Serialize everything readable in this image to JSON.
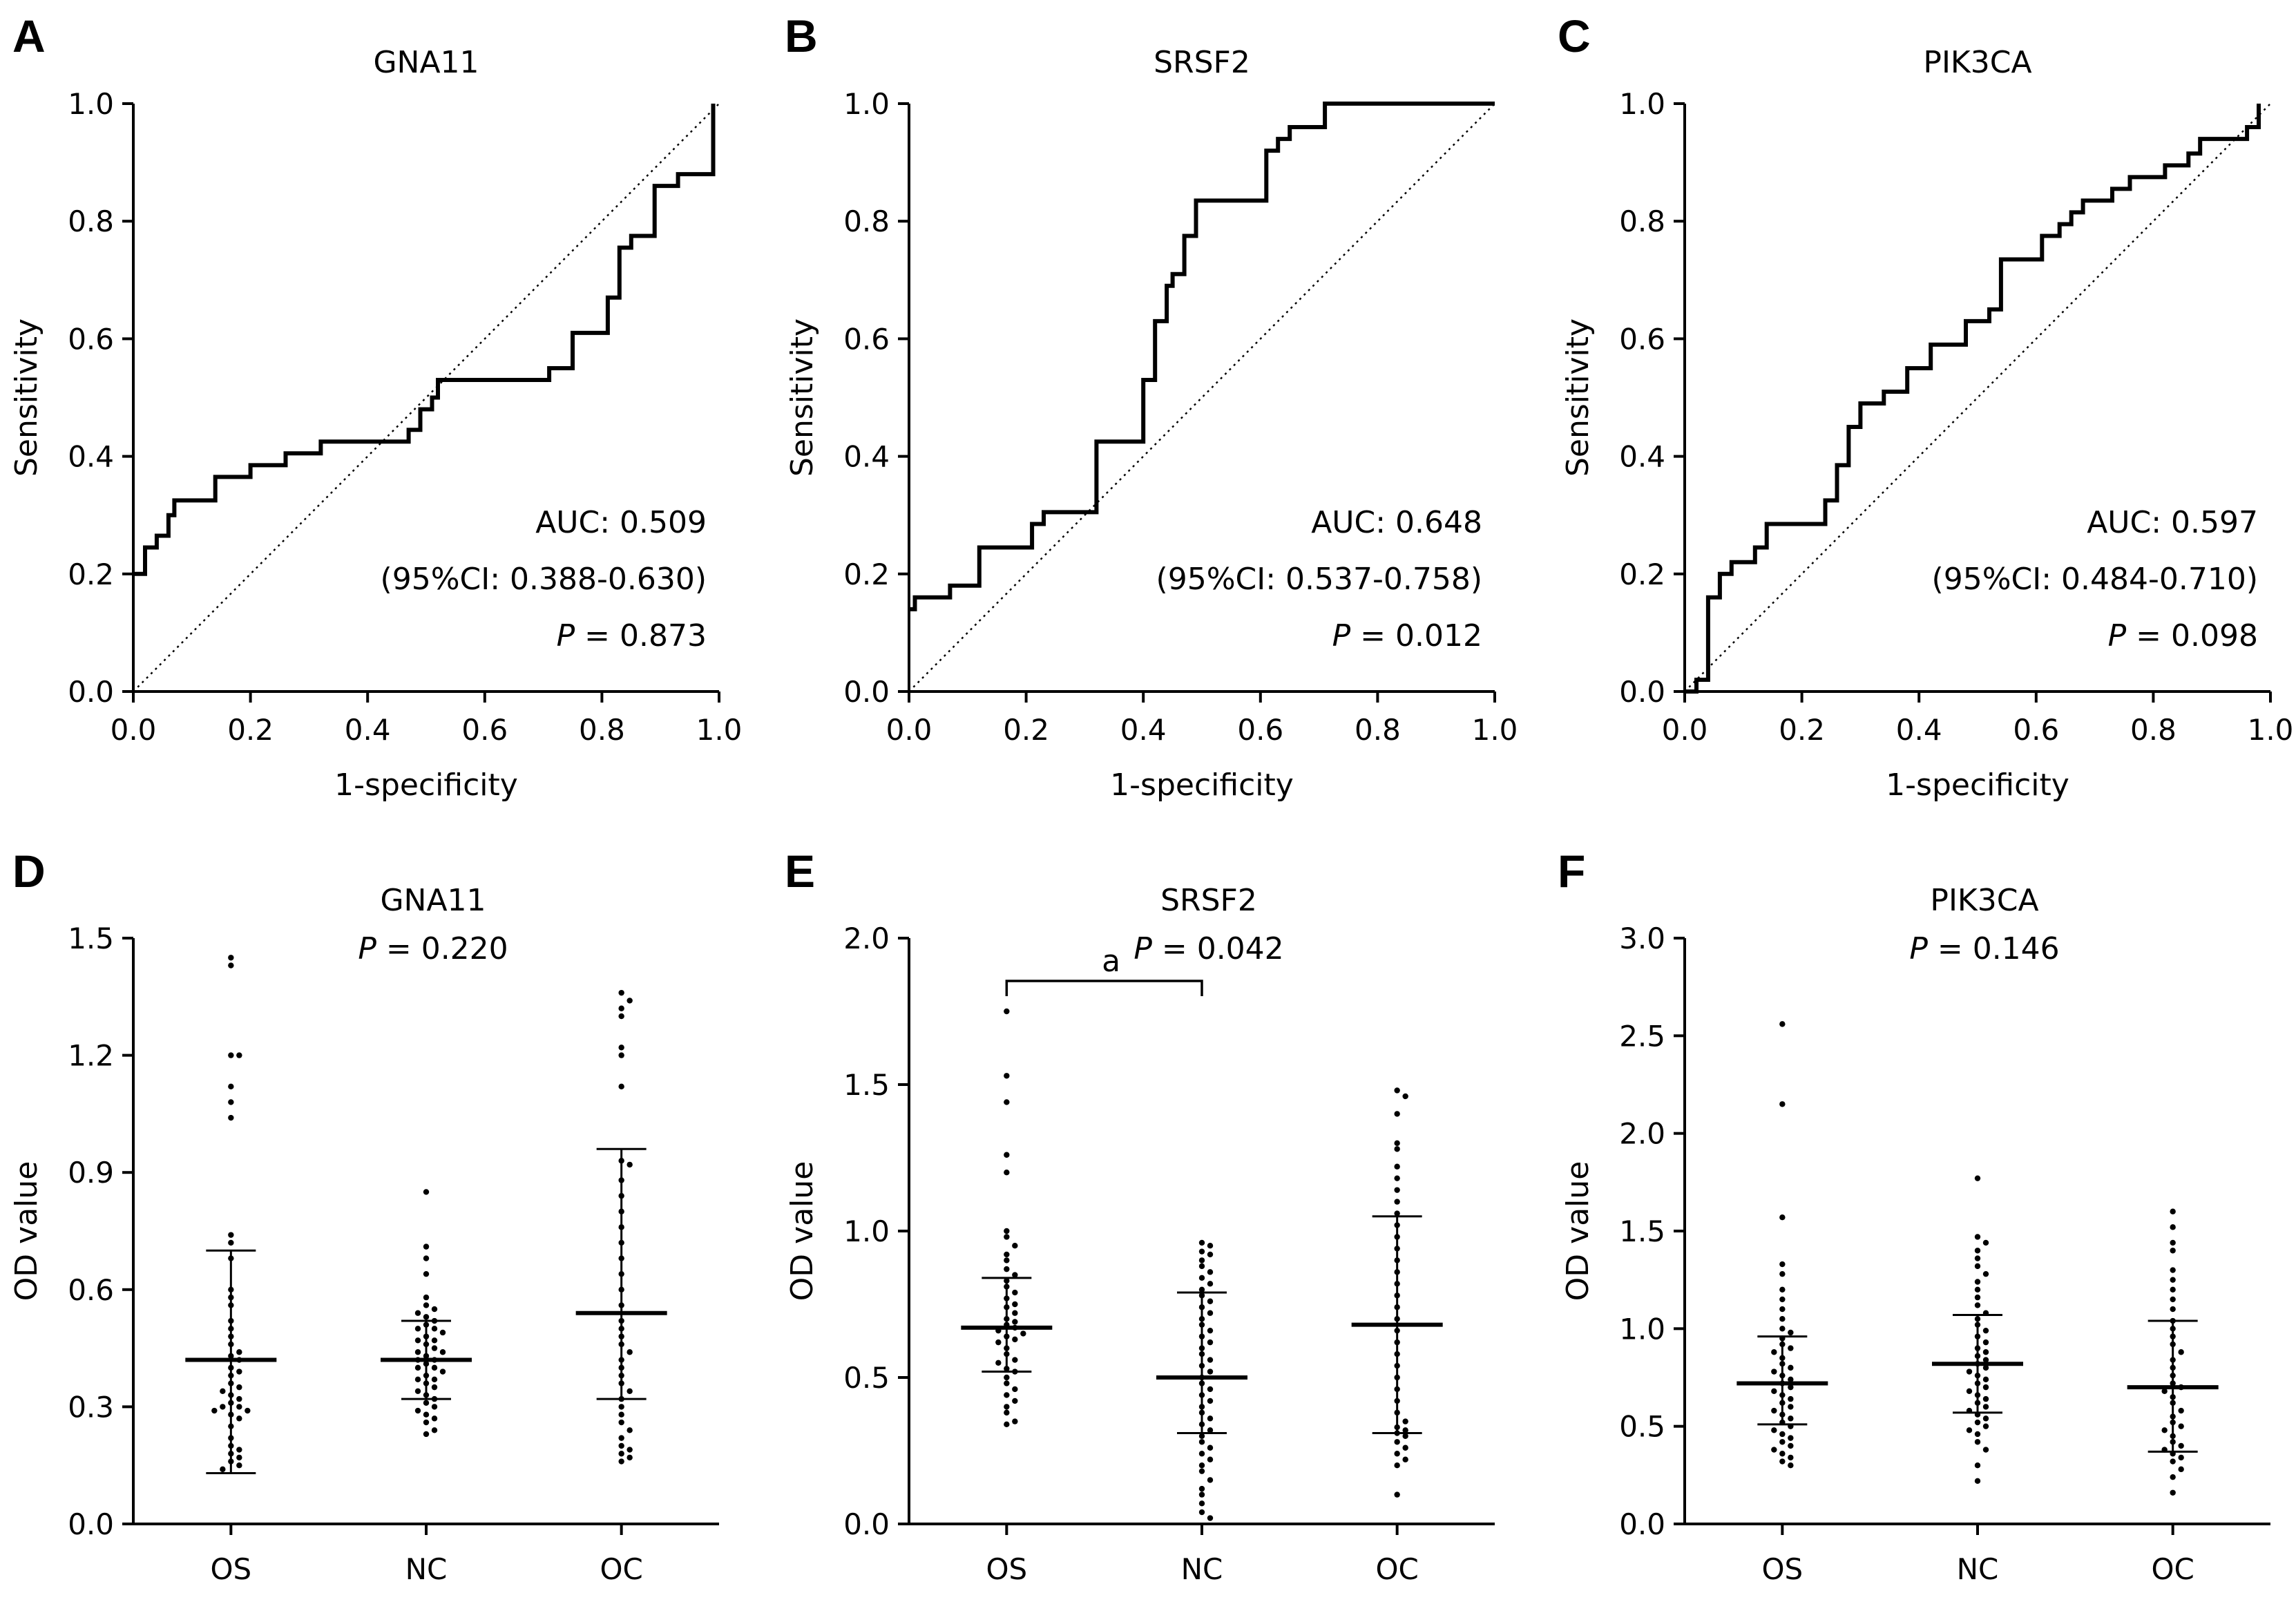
{
  "chart_data": [
    {
      "panel": "A",
      "type": "line",
      "title": "GNA11",
      "xlabel": "1-specificity",
      "ylabel": "Sensitivity",
      "xlim": [
        0,
        1
      ],
      "ylim": [
        0,
        1
      ],
      "xticks": [
        "0.0",
        "0.2",
        "0.4",
        "0.6",
        "0.8",
        "1.0"
      ],
      "yticks": [
        "0.0",
        "0.2",
        "0.4",
        "0.6",
        "0.8",
        "1.0"
      ],
      "auc_text": "AUC: 0.509",
      "ci_text": "(95%CI: 0.388-0.630)",
      "p_value": "0.873",
      "roc": [
        [
          0,
          0.2
        ],
        [
          0.02,
          0.2
        ],
        [
          0.02,
          0.245
        ],
        [
          0.04,
          0.245
        ],
        [
          0.04,
          0.265
        ],
        [
          0.06,
          0.265
        ],
        [
          0.06,
          0.3
        ],
        [
          0.07,
          0.3
        ],
        [
          0.07,
          0.325
        ],
        [
          0.14,
          0.325
        ],
        [
          0.14,
          0.365
        ],
        [
          0.2,
          0.365
        ],
        [
          0.2,
          0.385
        ],
        [
          0.26,
          0.385
        ],
        [
          0.26,
          0.405
        ],
        [
          0.32,
          0.405
        ],
        [
          0.32,
          0.425
        ],
        [
          0.47,
          0.425
        ],
        [
          0.47,
          0.445
        ],
        [
          0.49,
          0.445
        ],
        [
          0.49,
          0.48
        ],
        [
          0.51,
          0.48
        ],
        [
          0.51,
          0.5
        ],
        [
          0.52,
          0.5
        ],
        [
          0.52,
          0.53
        ],
        [
          0.71,
          0.53
        ],
        [
          0.71,
          0.55
        ],
        [
          0.75,
          0.55
        ],
        [
          0.75,
          0.61
        ],
        [
          0.81,
          0.61
        ],
        [
          0.81,
          0.67
        ],
        [
          0.83,
          0.67
        ],
        [
          0.83,
          0.755
        ],
        [
          0.85,
          0.755
        ],
        [
          0.85,
          0.775
        ],
        [
          0.89,
          0.775
        ],
        [
          0.89,
          0.86
        ],
        [
          0.93,
          0.86
        ],
        [
          0.93,
          0.88
        ],
        [
          0.99,
          0.88
        ],
        [
          0.99,
          1.0
        ]
      ]
    },
    {
      "panel": "B",
      "type": "line",
      "title": "SRSF2",
      "xlabel": "1-specificity",
      "ylabel": "Sensitivity",
      "xlim": [
        0,
        1
      ],
      "ylim": [
        0,
        1
      ],
      "xticks": [
        "0.0",
        "0.2",
        "0.4",
        "0.6",
        "0.8",
        "1.0"
      ],
      "yticks": [
        "0.0",
        "0.2",
        "0.4",
        "0.6",
        "0.8",
        "1.0"
      ],
      "auc_text": "AUC: 0.648",
      "ci_text": "(95%CI: 0.537-0.758)",
      "p_value": "0.012",
      "roc": [
        [
          0,
          0.14
        ],
        [
          0.01,
          0.14
        ],
        [
          0.01,
          0.16
        ],
        [
          0.07,
          0.16
        ],
        [
          0.07,
          0.18
        ],
        [
          0.12,
          0.18
        ],
        [
          0.12,
          0.245
        ],
        [
          0.21,
          0.245
        ],
        [
          0.21,
          0.285
        ],
        [
          0.23,
          0.285
        ],
        [
          0.23,
          0.305
        ],
        [
          0.32,
          0.305
        ],
        [
          0.32,
          0.425
        ],
        [
          0.4,
          0.425
        ],
        [
          0.4,
          0.53
        ],
        [
          0.42,
          0.53
        ],
        [
          0.42,
          0.63
        ],
        [
          0.44,
          0.63
        ],
        [
          0.44,
          0.69
        ],
        [
          0.45,
          0.69
        ],
        [
          0.45,
          0.71
        ],
        [
          0.47,
          0.71
        ],
        [
          0.47,
          0.775
        ],
        [
          0.49,
          0.775
        ],
        [
          0.49,
          0.835
        ],
        [
          0.61,
          0.835
        ],
        [
          0.61,
          0.92
        ],
        [
          0.63,
          0.92
        ],
        [
          0.63,
          0.94
        ],
        [
          0.65,
          0.94
        ],
        [
          0.65,
          0.96
        ],
        [
          0.71,
          0.96
        ],
        [
          0.71,
          1.0
        ],
        [
          1.0,
          1.0
        ]
      ]
    },
    {
      "panel": "C",
      "type": "line",
      "title": "PIK3CA",
      "xlabel": "1-specificity",
      "ylabel": "Sensitivity",
      "xlim": [
        0,
        1
      ],
      "ylim": [
        0,
        1
      ],
      "xticks": [
        "0.0",
        "0.2",
        "0.4",
        "0.6",
        "0.8",
        "1.0"
      ],
      "yticks": [
        "0.0",
        "0.2",
        "0.4",
        "0.6",
        "0.8",
        "1.0"
      ],
      "auc_text": "AUC: 0.597",
      "ci_text": "(95%CI: 0.484-0.710)",
      "p_value": "0.098",
      "roc": [
        [
          0,
          0
        ],
        [
          0.02,
          0
        ],
        [
          0.02,
          0.02
        ],
        [
          0.04,
          0.02
        ],
        [
          0.04,
          0.16
        ],
        [
          0.06,
          0.16
        ],
        [
          0.06,
          0.2
        ],
        [
          0.08,
          0.2
        ],
        [
          0.08,
          0.22
        ],
        [
          0.12,
          0.22
        ],
        [
          0.12,
          0.245
        ],
        [
          0.14,
          0.245
        ],
        [
          0.14,
          0.285
        ],
        [
          0.24,
          0.285
        ],
        [
          0.24,
          0.325
        ],
        [
          0.26,
          0.325
        ],
        [
          0.26,
          0.385
        ],
        [
          0.28,
          0.385
        ],
        [
          0.28,
          0.45
        ],
        [
          0.3,
          0.45
        ],
        [
          0.3,
          0.49
        ],
        [
          0.34,
          0.49
        ],
        [
          0.34,
          0.51
        ],
        [
          0.38,
          0.51
        ],
        [
          0.38,
          0.55
        ],
        [
          0.42,
          0.55
        ],
        [
          0.42,
          0.59
        ],
        [
          0.48,
          0.59
        ],
        [
          0.48,
          0.63
        ],
        [
          0.52,
          0.63
        ],
        [
          0.52,
          0.65
        ],
        [
          0.54,
          0.65
        ],
        [
          0.54,
          0.735
        ],
        [
          0.61,
          0.735
        ],
        [
          0.61,
          0.775
        ],
        [
          0.64,
          0.775
        ],
        [
          0.64,
          0.795
        ],
        [
          0.66,
          0.795
        ],
        [
          0.66,
          0.815
        ],
        [
          0.68,
          0.815
        ],
        [
          0.68,
          0.835
        ],
        [
          0.73,
          0.835
        ],
        [
          0.73,
          0.855
        ],
        [
          0.76,
          0.855
        ],
        [
          0.76,
          0.875
        ],
        [
          0.82,
          0.875
        ],
        [
          0.82,
          0.895
        ],
        [
          0.86,
          0.895
        ],
        [
          0.86,
          0.915
        ],
        [
          0.88,
          0.915
        ],
        [
          0.88,
          0.94
        ],
        [
          0.96,
          0.94
        ],
        [
          0.96,
          0.96
        ],
        [
          0.98,
          0.96
        ],
        [
          0.98,
          1.0
        ]
      ]
    },
    {
      "panel": "D",
      "type": "scatter",
      "title": "GNA11",
      "p_value": "0.220",
      "ylabel": "OD value",
      "categories": [
        "OS",
        "NC",
        "OC"
      ],
      "ylim": [
        0,
        1.5
      ],
      "yticks": [
        "0.0",
        "0.3",
        "0.6",
        "0.9",
        "1.2",
        "1.5"
      ],
      "groups": [
        {
          "name": "OS",
          "mean": 0.42,
          "sd_low": 0.13,
          "sd_high": 0.7,
          "values": [
            1.45,
            1.43,
            1.2,
            1.2,
            1.12,
            1.08,
            1.04,
            0.74,
            0.72,
            0.68,
            0.6,
            0.58,
            0.56,
            0.52,
            0.5,
            0.48,
            0.46,
            0.44,
            0.43,
            0.42,
            0.4,
            0.39,
            0.38,
            0.36,
            0.35,
            0.34,
            0.33,
            0.32,
            0.31,
            0.3,
            0.3,
            0.29,
            0.29,
            0.28,
            0.27,
            0.25,
            0.22,
            0.2,
            0.19,
            0.18,
            0.17,
            0.16,
            0.15,
            0.14
          ]
        },
        {
          "name": "NC",
          "mean": 0.42,
          "sd_low": 0.32,
          "sd_high": 0.52,
          "values": [
            0.85,
            0.71,
            0.68,
            0.64,
            0.58,
            0.56,
            0.55,
            0.54,
            0.53,
            0.52,
            0.51,
            0.5,
            0.5,
            0.49,
            0.48,
            0.47,
            0.47,
            0.46,
            0.45,
            0.44,
            0.44,
            0.43,
            0.42,
            0.42,
            0.41,
            0.4,
            0.4,
            0.39,
            0.38,
            0.37,
            0.37,
            0.36,
            0.35,
            0.34,
            0.33,
            0.32,
            0.31,
            0.3,
            0.29,
            0.28,
            0.27,
            0.26,
            0.24,
            0.23
          ]
        },
        {
          "name": "OC",
          "mean": 0.54,
          "sd_low": 0.32,
          "sd_high": 0.96,
          "values": [
            1.36,
            1.34,
            1.32,
            1.3,
            1.22,
            1.2,
            1.12,
            0.93,
            0.92,
            0.88,
            0.84,
            0.8,
            0.76,
            0.72,
            0.68,
            0.64,
            0.6,
            0.56,
            0.52,
            0.5,
            0.48,
            0.46,
            0.44,
            0.42,
            0.4,
            0.38,
            0.36,
            0.34,
            0.32,
            0.3,
            0.28,
            0.26,
            0.24,
            0.22,
            0.2,
            0.19,
            0.18,
            0.17,
            0.16
          ]
        }
      ]
    },
    {
      "panel": "E",
      "type": "scatter",
      "title": "SRSF2",
      "p_value": "0.042",
      "sig_label": "a",
      "sig_pair": [
        "OS",
        "NC"
      ],
      "ylabel": "OD value",
      "categories": [
        "OS",
        "NC",
        "OC"
      ],
      "ylim": [
        0,
        2.0
      ],
      "yticks": [
        "0.0",
        "0.5",
        "1.0",
        "1.5",
        "2.0"
      ],
      "groups": [
        {
          "name": "OS",
          "mean": 0.67,
          "sd_low": 0.52,
          "sd_high": 0.84,
          "values": [
            1.75,
            1.53,
            1.44,
            1.26,
            1.2,
            1.0,
            0.98,
            0.95,
            0.92,
            0.9,
            0.87,
            0.85,
            0.83,
            0.81,
            0.79,
            0.77,
            0.75,
            0.74,
            0.72,
            0.7,
            0.69,
            0.68,
            0.67,
            0.66,
            0.65,
            0.64,
            0.63,
            0.62,
            0.6,
            0.58,
            0.56,
            0.55,
            0.53,
            0.52,
            0.5,
            0.48,
            0.46,
            0.44,
            0.42,
            0.4,
            0.38,
            0.35,
            0.34
          ]
        },
        {
          "name": "NC",
          "mean": 0.5,
          "sd_low": 0.31,
          "sd_high": 0.79,
          "values": [
            0.96,
            0.95,
            0.93,
            0.92,
            0.9,
            0.88,
            0.86,
            0.84,
            0.82,
            0.8,
            0.78,
            0.76,
            0.74,
            0.72,
            0.7,
            0.68,
            0.66,
            0.64,
            0.62,
            0.6,
            0.58,
            0.56,
            0.54,
            0.52,
            0.5,
            0.48,
            0.46,
            0.44,
            0.42,
            0.4,
            0.38,
            0.36,
            0.34,
            0.32,
            0.3,
            0.28,
            0.26,
            0.24,
            0.22,
            0.2,
            0.18,
            0.15,
            0.12,
            0.1,
            0.07,
            0.04,
            0.02
          ]
        },
        {
          "name": "OC",
          "mean": 0.68,
          "sd_low": 0.31,
          "sd_high": 1.05,
          "values": [
            1.48,
            1.46,
            1.4,
            1.3,
            1.28,
            1.22,
            1.18,
            1.14,
            1.1,
            1.06,
            1.02,
            0.98,
            0.94,
            0.9,
            0.86,
            0.82,
            0.78,
            0.74,
            0.7,
            0.66,
            0.62,
            0.58,
            0.54,
            0.5,
            0.46,
            0.42,
            0.38,
            0.35,
            0.33,
            0.32,
            0.31,
            0.3,
            0.28,
            0.26,
            0.24,
            0.22,
            0.2,
            0.1
          ]
        }
      ]
    },
    {
      "panel": "F",
      "type": "scatter",
      "title": "PIK3CA",
      "p_value": "0.146",
      "ylabel": "OD value",
      "categories": [
        "OS",
        "NC",
        "OC"
      ],
      "ylim": [
        0,
        3.0
      ],
      "yticks": [
        "0.0",
        "0.5",
        "1.0",
        "1.5",
        "2.0",
        "2.5",
        "3.0"
      ],
      "groups": [
        {
          "name": "OS",
          "mean": 0.72,
          "sd_low": 0.51,
          "sd_high": 0.96,
          "values": [
            2.56,
            2.15,
            1.57,
            1.33,
            1.28,
            1.2,
            1.15,
            1.1,
            1.05,
            1.0,
            0.98,
            0.95,
            0.92,
            0.9,
            0.88,
            0.85,
            0.82,
            0.8,
            0.78,
            0.76,
            0.74,
            0.72,
            0.7,
            0.68,
            0.66,
            0.64,
            0.62,
            0.6,
            0.58,
            0.56,
            0.54,
            0.52,
            0.5,
            0.48,
            0.46,
            0.44,
            0.42,
            0.4,
            0.38,
            0.36,
            0.34,
            0.32,
            0.3
          ]
        },
        {
          "name": "NC",
          "mean": 0.82,
          "sd_low": 0.57,
          "sd_high": 1.07,
          "values": [
            1.77,
            1.47,
            1.44,
            1.4,
            1.36,
            1.32,
            1.28,
            1.24,
            1.2,
            1.16,
            1.12,
            1.08,
            1.05,
            1.02,
            0.99,
            0.96,
            0.93,
            0.9,
            0.88,
            0.86,
            0.84,
            0.82,
            0.8,
            0.78,
            0.76,
            0.74,
            0.72,
            0.7,
            0.68,
            0.66,
            0.64,
            0.62,
            0.6,
            0.58,
            0.56,
            0.54,
            0.52,
            0.5,
            0.48,
            0.46,
            0.42,
            0.38,
            0.3,
            0.22
          ]
        },
        {
          "name": "OC",
          "mean": 0.7,
          "sd_low": 0.37,
          "sd_high": 1.04,
          "values": [
            1.6,
            1.52,
            1.44,
            1.4,
            1.3,
            1.25,
            1.2,
            1.15,
            1.1,
            1.04,
            1.0,
            0.96,
            0.92,
            0.88,
            0.84,
            0.8,
            0.76,
            0.72,
            0.7,
            0.68,
            0.65,
            0.62,
            0.58,
            0.55,
            0.52,
            0.5,
            0.48,
            0.45,
            0.42,
            0.4,
            0.38,
            0.36,
            0.34,
            0.32,
            0.28,
            0.24,
            0.16
          ]
        }
      ]
    }
  ]
}
